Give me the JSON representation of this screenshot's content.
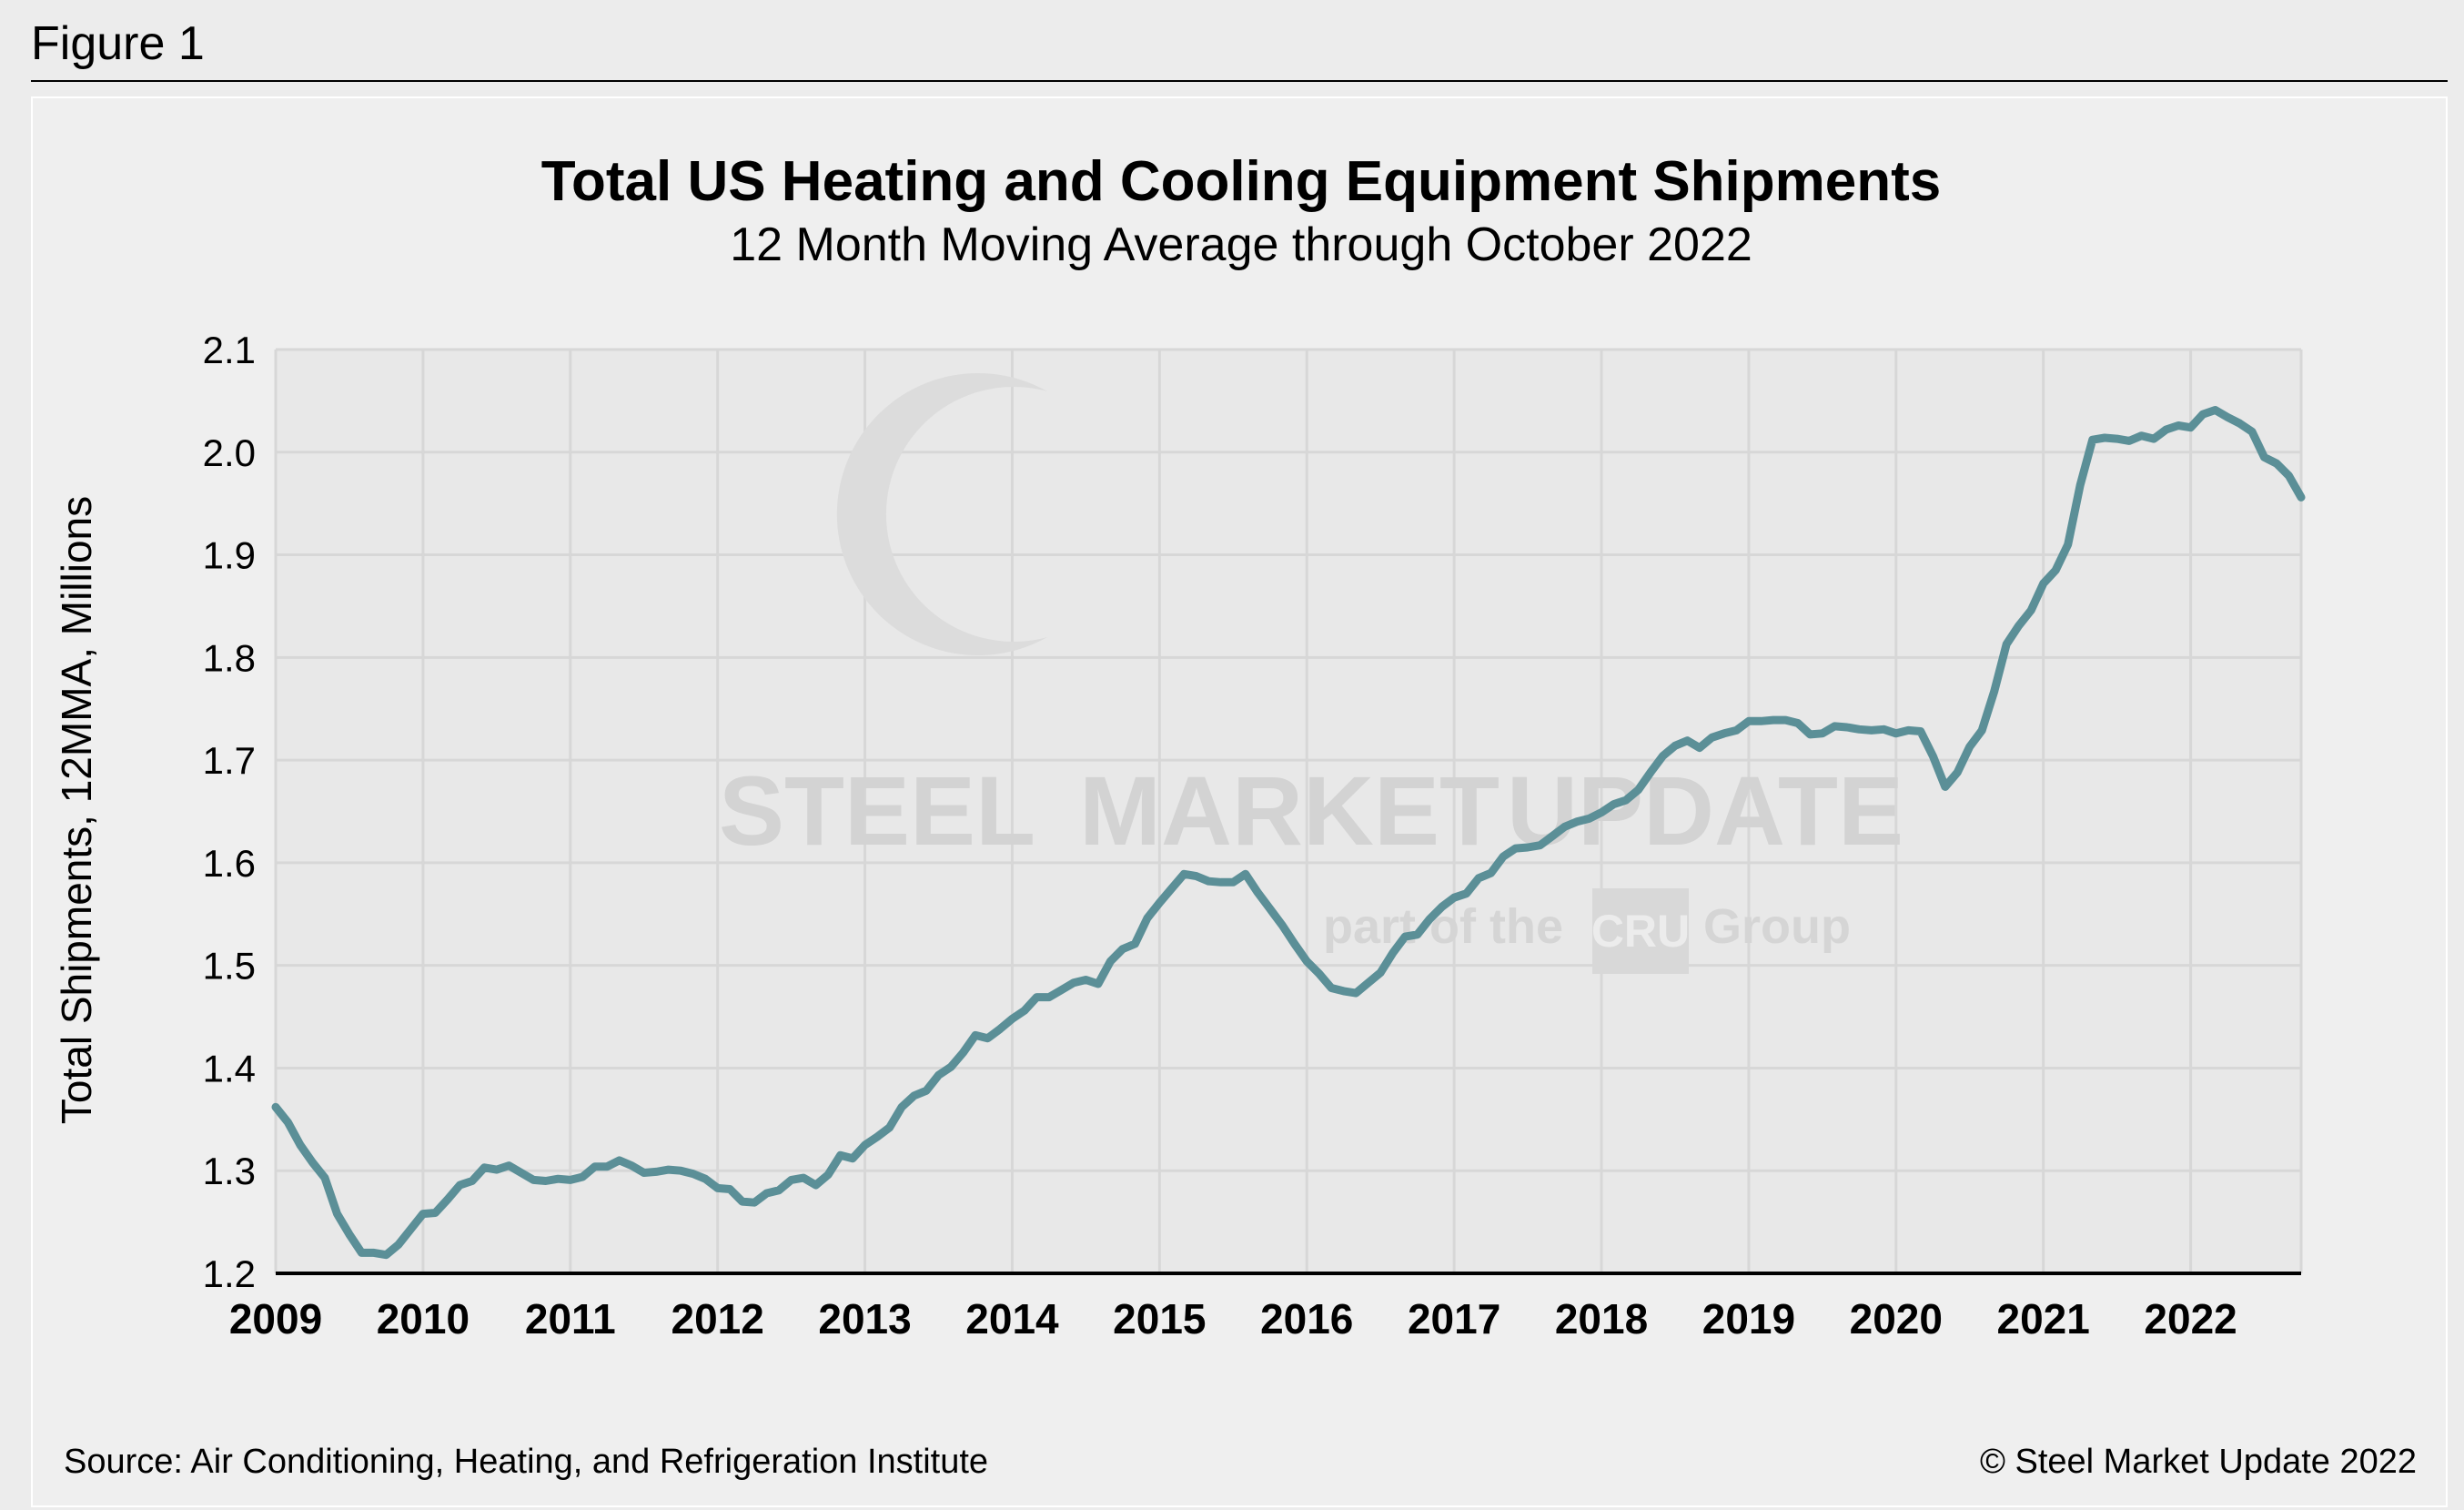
{
  "figure_label": "Figure 1",
  "source": "Source: Air Conditioning, Heating, and Refrigeration Institute",
  "copyright": "© Steel Market Update 2022",
  "watermark": {
    "steel": "STEEL",
    "market": "MARKET",
    "update": "UPDATE",
    "part_of": "part of the",
    "cru": "CRU",
    "group": "Group"
  },
  "colors": {
    "line": "#5b8f97",
    "grid": "#d7d7d7",
    "plot_bg": "#e8e8e8",
    "axis": "#000000"
  },
  "chart_data": {
    "type": "line",
    "title": "Total US Heating and Cooling Equipment Shipments",
    "subtitle": "12 Month Moving Average through October 2022",
    "ylabel": "Total Shipments, 12MMA, Millions",
    "xlabel": "",
    "ylim": [
      1.2,
      2.1
    ],
    "yticks": [
      "1.2",
      "1.3",
      "1.4",
      "1.5",
      "1.6",
      "1.7",
      "1.8",
      "1.9",
      "2.0",
      "2.1"
    ],
    "xticks": [
      "2009",
      "2010",
      "2011",
      "2012",
      "2013",
      "2014",
      "2015",
      "2016",
      "2017",
      "2018",
      "2019",
      "2020",
      "2021",
      "2022"
    ],
    "xlim": [
      "2009-01",
      "2022-10"
    ],
    "grid": true,
    "legend": "none",
    "series": [
      {
        "x": [
          "2009-01",
          "2009-02",
          "2009-03",
          "2009-04",
          "2009-05",
          "2009-06",
          "2009-07",
          "2009-08",
          "2009-09",
          "2009-10",
          "2009-11",
          "2009-12",
          "2010-01",
          "2010-02",
          "2010-03",
          "2010-04",
          "2010-05",
          "2010-06",
          "2010-07",
          "2010-08",
          "2010-09",
          "2010-10",
          "2010-11",
          "2010-12",
          "2011-01",
          "2011-02",
          "2011-03",
          "2011-04",
          "2011-05",
          "2011-06",
          "2011-07",
          "2011-08",
          "2011-09",
          "2011-10",
          "2011-11",
          "2011-12",
          "2012-01",
          "2012-02",
          "2012-03",
          "2012-04",
          "2012-05",
          "2012-06",
          "2012-07",
          "2012-08",
          "2012-09",
          "2012-10",
          "2012-11",
          "2012-12",
          "2013-01",
          "2013-02",
          "2013-03",
          "2013-04",
          "2013-05",
          "2013-06",
          "2013-07",
          "2013-08",
          "2013-09",
          "2013-10",
          "2013-11",
          "2013-12",
          "2014-01",
          "2014-02",
          "2014-03",
          "2014-04",
          "2014-05",
          "2014-06",
          "2014-07",
          "2014-08",
          "2014-09",
          "2014-10",
          "2014-11",
          "2014-12",
          "2015-01",
          "2015-02",
          "2015-03",
          "2015-04",
          "2015-05",
          "2015-06",
          "2015-07",
          "2015-08",
          "2015-09",
          "2015-10",
          "2015-11",
          "2015-12",
          "2016-01",
          "2016-02",
          "2016-03",
          "2016-04",
          "2016-05",
          "2016-06",
          "2016-07",
          "2016-08",
          "2016-09",
          "2016-10",
          "2016-11",
          "2016-12",
          "2017-01",
          "2017-02",
          "2017-03",
          "2017-04",
          "2017-05",
          "2017-06",
          "2017-07",
          "2017-08",
          "2017-09",
          "2017-10",
          "2017-11",
          "2017-12",
          "2018-01",
          "2018-02",
          "2018-03",
          "2018-04",
          "2018-05",
          "2018-06",
          "2018-07",
          "2018-08",
          "2018-09",
          "2018-10",
          "2018-11",
          "2018-12",
          "2019-01",
          "2019-02",
          "2019-03",
          "2019-04",
          "2019-05",
          "2019-06",
          "2019-07",
          "2019-08",
          "2019-09",
          "2019-10",
          "2019-11",
          "2019-12",
          "2020-01",
          "2020-02",
          "2020-03",
          "2020-04",
          "2020-05",
          "2020-06",
          "2020-07",
          "2020-08",
          "2020-09",
          "2020-10",
          "2020-11",
          "2020-12",
          "2021-01",
          "2021-02",
          "2021-03",
          "2021-04",
          "2021-05",
          "2021-06",
          "2021-07",
          "2021-08",
          "2021-09",
          "2021-10",
          "2021-11",
          "2021-12",
          "2022-01",
          "2022-02",
          "2022-03",
          "2022-04",
          "2022-05",
          "2022-06",
          "2022-07",
          "2022-08",
          "2022-09",
          "2022-10"
        ],
        "values": [
          1.362,
          1.347,
          1.325,
          1.308,
          1.293,
          1.258,
          1.238,
          1.22,
          1.22,
          1.218,
          1.228,
          1.243,
          1.258,
          1.259,
          1.272,
          1.286,
          1.29,
          1.303,
          1.301,
          1.305,
          1.298,
          1.291,
          1.29,
          1.292,
          1.291,
          1.294,
          1.304,
          1.304,
          1.31,
          1.305,
          1.298,
          1.299,
          1.301,
          1.3,
          1.297,
          1.292,
          1.283,
          1.282,
          1.27,
          1.269,
          1.278,
          1.281,
          1.291,
          1.293,
          1.286,
          1.296,
          1.315,
          1.312,
          1.325,
          1.333,
          1.342,
          1.362,
          1.373,
          1.378,
          1.393,
          1.401,
          1.415,
          1.432,
          1.429,
          1.438,
          1.448,
          1.456,
          1.469,
          1.469,
          1.476,
          1.483,
          1.486,
          1.482,
          1.504,
          1.516,
          1.521,
          1.546,
          1.561,
          1.575,
          1.589,
          1.587,
          1.582,
          1.581,
          1.581,
          1.589,
          1.571,
          1.555,
          1.539,
          1.521,
          1.504,
          1.492,
          1.478,
          1.475,
          1.473,
          1.483,
          1.493,
          1.512,
          1.528,
          1.53,
          1.545,
          1.557,
          1.566,
          1.57,
          1.585,
          1.59,
          1.606,
          1.614,
          1.615,
          1.617,
          1.626,
          1.635,
          1.64,
          1.643,
          1.649,
          1.657,
          1.661,
          1.671,
          1.688,
          1.704,
          1.714,
          1.719,
          1.712,
          1.722,
          1.726,
          1.729,
          1.738,
          1.738,
          1.739,
          1.739,
          1.736,
          1.725,
          1.726,
          1.733,
          1.732,
          1.73,
          1.729,
          1.73,
          1.726,
          1.729,
          1.728,
          1.704,
          1.674,
          1.688,
          1.713,
          1.729,
          1.767,
          1.813,
          1.831,
          1.846,
          1.872,
          1.885,
          1.91,
          1.968,
          2.012,
          2.014,
          2.013,
          2.011,
          2.016,
          2.013,
          2.022,
          2.026,
          2.024,
          2.037,
          2.041,
          2.034,
          2.028,
          2.02,
          1.995,
          1.989,
          1.977,
          1.956
        ]
      }
    ]
  }
}
